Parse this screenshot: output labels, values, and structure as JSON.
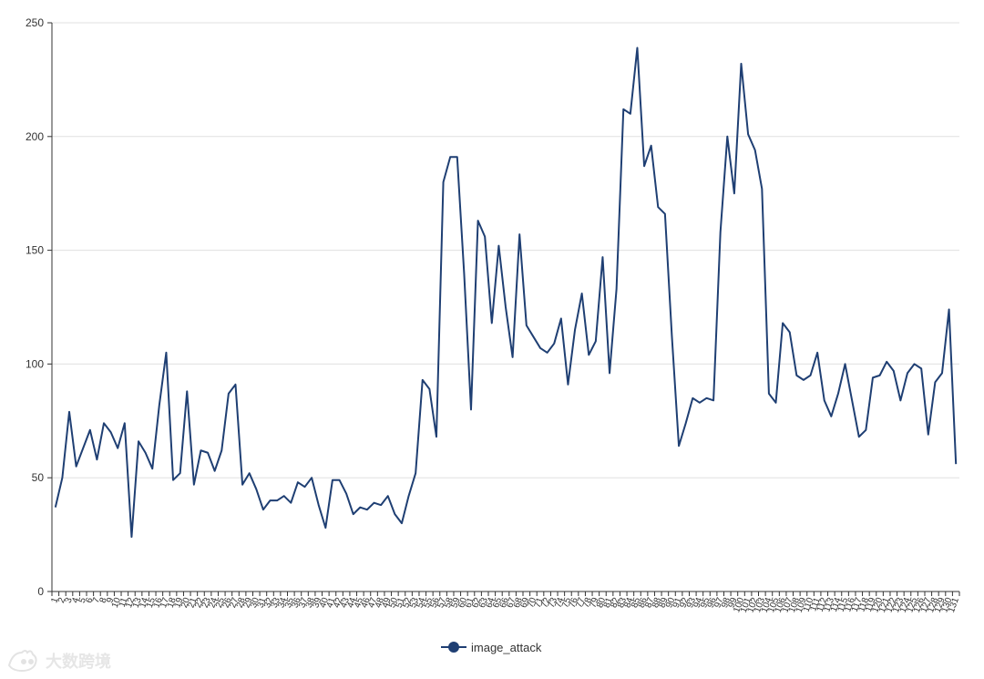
{
  "chart_data": {
    "type": "line",
    "title": "",
    "xlabel": "",
    "ylabel": "",
    "ylim": [
      0,
      250
    ],
    "yticks": [
      0,
      50,
      100,
      150,
      200,
      250
    ],
    "grid": true,
    "legend_position": "bottom-center",
    "colors": {
      "series": "#1f3f73",
      "grid": "#e0e0e0",
      "axis": "#333333"
    },
    "categories": [
      "1",
      "2",
      "3",
      "4",
      "5",
      "6",
      "7",
      "8",
      "9",
      "10",
      "11",
      "12",
      "13",
      "14",
      "15",
      "16",
      "17",
      "18",
      "19",
      "20",
      "21",
      "22",
      "23",
      "24",
      "25",
      "26",
      "27",
      "28",
      "29",
      "30",
      "31",
      "32",
      "33",
      "34",
      "35",
      "36",
      "37",
      "38",
      "39",
      "40",
      "41",
      "42",
      "43",
      "44",
      "45",
      "46",
      "47",
      "48",
      "49",
      "50",
      "51",
      "52",
      "53",
      "54",
      "55",
      "56",
      "57",
      "58",
      "59",
      "60",
      "61",
      "62",
      "63",
      "64",
      "65",
      "66",
      "67",
      "68",
      "69",
      "70",
      "71",
      "72",
      "73",
      "74",
      "75",
      "76",
      "77",
      "78",
      "79",
      "80",
      "81",
      "82",
      "83",
      "84",
      "85",
      "86",
      "87",
      "88",
      "89",
      "90",
      "91",
      "92",
      "93",
      "94",
      "95",
      "96",
      "97",
      "98",
      "99",
      "100",
      "101",
      "102",
      "103",
      "104",
      "105",
      "106",
      "107",
      "108",
      "109",
      "110",
      "111",
      "112",
      "113",
      "114",
      "115",
      "116",
      "117",
      "118",
      "119",
      "120",
      "121",
      "122",
      "123",
      "124",
      "125",
      "126",
      "127",
      "128",
      "129",
      "130",
      "131"
    ],
    "series": [
      {
        "name": "image_attack",
        "values": [
          37,
          50,
          79,
          55,
          63,
          71,
          58,
          74,
          70,
          63,
          74,
          24,
          66,
          61,
          54,
          82,
          105,
          49,
          52,
          88,
          47,
          62,
          61,
          53,
          62,
          87,
          91,
          47,
          52,
          45,
          36,
          40,
          40,
          42,
          39,
          48,
          46,
          50,
          38,
          28,
          49,
          49,
          43,
          34,
          37,
          36,
          39,
          38,
          42,
          34,
          30,
          42,
          52,
          93,
          89,
          68,
          180,
          191,
          191,
          140,
          80,
          163,
          156,
          118,
          152,
          125,
          103,
          157,
          117,
          112,
          107,
          105,
          109,
          120,
          91,
          115,
          131,
          104,
          110,
          147,
          96,
          133,
          212,
          210,
          239,
          187,
          196,
          169,
          166,
          112,
          64,
          74,
          85,
          83,
          85,
          84,
          158,
          200,
          175,
          232,
          201,
          194,
          177,
          87,
          83,
          118,
          114,
          95,
          93,
          95,
          105,
          84,
          77,
          87,
          100,
          84,
          68,
          71,
          94,
          95,
          101,
          97,
          84,
          96,
          100,
          98,
          69,
          92,
          96,
          124,
          56
        ]
      }
    ]
  },
  "watermark": {
    "text": "大数跨境"
  }
}
